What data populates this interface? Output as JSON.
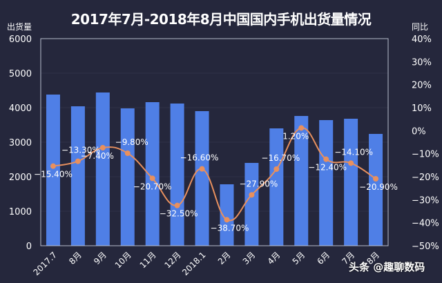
{
  "title": "2017年7月-2018年8月中国国内手机出货量情况",
  "left_axis_name": "出货量",
  "right_axis_name": "同比",
  "watermark": "头条 @趣聊数码",
  "colors": {
    "background": "#25273c",
    "bar": "#4f7fe6",
    "line": "#e8905e",
    "axis": "#b8bccd",
    "grid": "#2f3248",
    "text": "#ffffff"
  },
  "chart_data": {
    "type": "bar",
    "title": "2017年7月-2018年8月中国国内手机出货量情况",
    "xlabel": "",
    "ylabel": "出货量",
    "ylabel_right": "同比",
    "categories": [
      "2017.7",
      "8月",
      "9月",
      "10月",
      "11月",
      "12月",
      "2018.1",
      "2月",
      "3月",
      "4月",
      "5月",
      "6月",
      "7月",
      "8月"
    ],
    "ylim": [
      0,
      6000
    ],
    "yticks": [
      0,
      1000,
      2000,
      3000,
      4000,
      5000,
      6000
    ],
    "ylim_right": [
      -50,
      40
    ],
    "yticks_right": [
      "-50%",
      "-40%",
      "-30%",
      "-20%",
      "-10%",
      "0%",
      "10%",
      "20%",
      "30%",
      "40%"
    ],
    "series": [
      {
        "name": "出货量",
        "type": "bar",
        "axis": "left",
        "values": [
          4380,
          4040,
          4440,
          3980,
          4160,
          4120,
          3900,
          1780,
          2400,
          3400,
          3760,
          3640,
          3680,
          3240
        ]
      },
      {
        "name": "同比",
        "type": "line",
        "axis": "right",
        "unit": "%",
        "values": [
          -15.4,
          -13.3,
          -7.4,
          -9.8,
          -20.7,
          -32.5,
          -16.6,
          -38.7,
          -27.9,
          -16.7,
          1.2,
          -12.4,
          -14.1,
          -20.9
        ],
        "labels": [
          "-15.40%",
          "-13.30%",
          "-7.40%",
          "-9.80%",
          "-20.70%",
          "-32.50%",
          "-16.60%",
          "-38.70%",
          "-27.90%",
          "-16.70%",
          "1.20%",
          "-12.40%",
          "-14.10%",
          "-20.90%"
        ]
      }
    ],
    "grid": true,
    "legend": "none"
  }
}
